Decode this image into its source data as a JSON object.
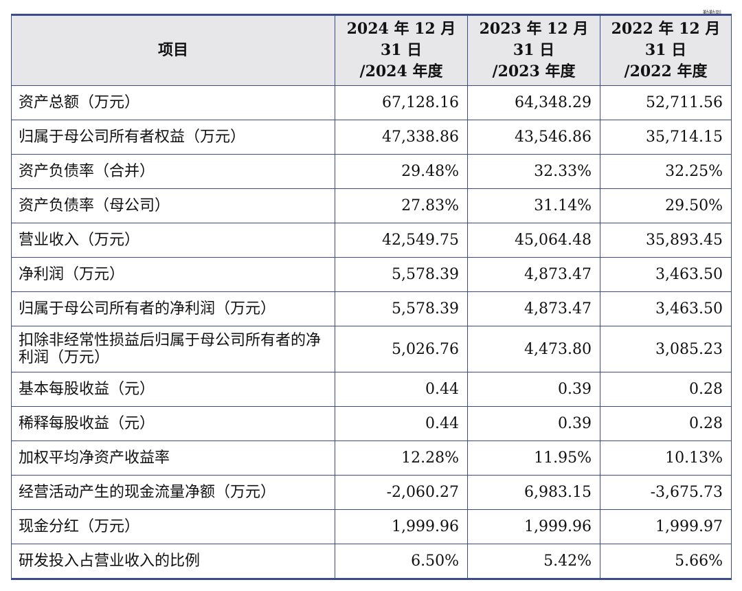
{
  "watermark": "勤勤到",
  "header": {
    "item": "项目",
    "columns": [
      {
        "l1": "2024 年 12 月",
        "l2": "31 日",
        "l3": "/2024 年度"
      },
      {
        "l1": "2023 年 12 月",
        "l2": "31 日",
        "l3": "/2023 年度"
      },
      {
        "l1": "2022 年 12 月",
        "l2": "31 日",
        "l3": "/2022 年度"
      }
    ]
  },
  "rows": [
    {
      "label": "资产总额（万元）",
      "v2024": "67,128.16",
      "v2023": "64,348.29",
      "v2022": "52,711.56"
    },
    {
      "label": "归属于母公司所有者权益（万元）",
      "v2024": "47,338.86",
      "v2023": "43,546.86",
      "v2022": "35,714.15"
    },
    {
      "label": "资产负债率（合并）",
      "v2024": "29.48%",
      "v2023": "32.33%",
      "v2022": "32.25%"
    },
    {
      "label": "资产负债率（母公司）",
      "v2024": "27.83%",
      "v2023": "31.14%",
      "v2022": "29.50%"
    },
    {
      "label": "营业收入（万元）",
      "v2024": "42,549.75",
      "v2023": "45,064.48",
      "v2022": "35,893.45"
    },
    {
      "label": "净利润（万元）",
      "v2024": "5,578.39",
      "v2023": "4,873.47",
      "v2022": "3,463.50"
    },
    {
      "label": "归属于母公司所有者的净利润（万元）",
      "v2024": "5,578.39",
      "v2023": "4,873.47",
      "v2022": "3,463.50"
    },
    {
      "label": "扣除非经常性损益后归属于母公司所有者的净利润（万元）",
      "v2024": "5,026.76",
      "v2023": "4,473.80",
      "v2022": "3,085.23"
    },
    {
      "label": "基本每股收益（元）",
      "v2024": "0.44",
      "v2023": "0.39",
      "v2022": "0.28"
    },
    {
      "label": "稀释每股收益（元）",
      "v2024": "0.44",
      "v2023": "0.39",
      "v2022": "0.28"
    },
    {
      "label": "加权平均净资产收益率",
      "v2024": "12.28%",
      "v2023": "11.95%",
      "v2022": "10.13%"
    },
    {
      "label": "经营活动产生的现金流量净额（万元）",
      "v2024": "-2,060.27",
      "v2023": "6,983.15",
      "v2022": "-3,675.73"
    },
    {
      "label": "现金分红（万元）",
      "v2024": "1,999.96",
      "v2023": "1,999.96",
      "v2022": "1,999.97"
    },
    {
      "label": "研发投入占营业收入的比例",
      "v2024": "6.50%",
      "v2023": "5.42%",
      "v2022": "5.66%"
    }
  ]
}
